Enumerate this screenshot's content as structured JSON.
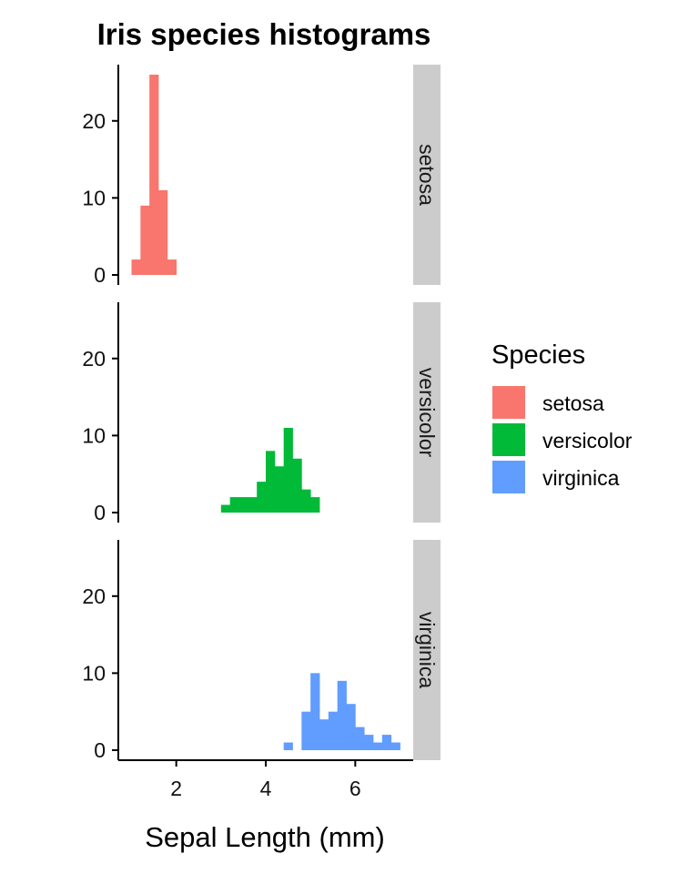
{
  "chart_data": {
    "type": "histogram",
    "title": "Iris species histograms",
    "xlabel": "Sepal Length (mm)",
    "ylabel": "",
    "x_ticks": [
      "2",
      "4",
      "6"
    ],
    "x_tick_values": [
      2,
      4,
      6
    ],
    "y_ticks": [
      "0",
      "10",
      "20"
    ],
    "y_tick_values": [
      0,
      10,
      20
    ],
    "xlim": [
      0.705,
      7.295
    ],
    "ylim": [
      -1.3,
      27.3
    ],
    "bin_width": 0.2,
    "facet_layout": "rows",
    "legend": {
      "title": "Species",
      "placement": "right"
    },
    "series": [
      {
        "name": "setosa",
        "color": "#F8766D",
        "bins": [
          {
            "x0": 1.0,
            "x1": 1.2,
            "count": 2
          },
          {
            "x0": 1.2,
            "x1": 1.4,
            "count": 9
          },
          {
            "x0": 1.4,
            "x1": 1.6,
            "count": 26
          },
          {
            "x0": 1.6,
            "x1": 1.8,
            "count": 11
          },
          {
            "x0": 1.8,
            "x1": 2.0,
            "count": 2
          }
        ]
      },
      {
        "name": "versicolor",
        "color": "#00BA38",
        "bins": [
          {
            "x0": 3.0,
            "x1": 3.2,
            "count": 1
          },
          {
            "x0": 3.2,
            "x1": 3.4,
            "count": 2
          },
          {
            "x0": 3.4,
            "x1": 3.6,
            "count": 2
          },
          {
            "x0": 3.6,
            "x1": 3.8,
            "count": 2
          },
          {
            "x0": 3.8,
            "x1": 4.0,
            "count": 4
          },
          {
            "x0": 4.0,
            "x1": 4.2,
            "count": 8
          },
          {
            "x0": 4.2,
            "x1": 4.4,
            "count": 6
          },
          {
            "x0": 4.4,
            "x1": 4.6,
            "count": 11
          },
          {
            "x0": 4.6,
            "x1": 4.8,
            "count": 7
          },
          {
            "x0": 4.8,
            "x1": 5.0,
            "count": 3
          },
          {
            "x0": 5.0,
            "x1": 5.2,
            "count": 2
          }
        ]
      },
      {
        "name": "virginica",
        "color": "#619CFF",
        "bins": [
          {
            "x0": 4.4,
            "x1": 4.6,
            "count": 1
          },
          {
            "x0": 4.8,
            "x1": 5.0,
            "count": 5
          },
          {
            "x0": 5.0,
            "x1": 5.2,
            "count": 10
          },
          {
            "x0": 5.2,
            "x1": 5.4,
            "count": 4
          },
          {
            "x0": 5.4,
            "x1": 5.6,
            "count": 5
          },
          {
            "x0": 5.6,
            "x1": 5.8,
            "count": 9
          },
          {
            "x0": 5.8,
            "x1": 6.0,
            "count": 6
          },
          {
            "x0": 6.0,
            "x1": 6.2,
            "count": 3
          },
          {
            "x0": 6.2,
            "x1": 6.4,
            "count": 2
          },
          {
            "x0": 6.4,
            "x1": 6.6,
            "count": 1
          },
          {
            "x0": 6.6,
            "x1": 6.8,
            "count": 2
          },
          {
            "x0": 6.8,
            "x1": 7.0,
            "count": 1
          }
        ]
      }
    ],
    "colors": {
      "strip_background": "#CCCCCC",
      "axis": "#000000"
    }
  }
}
